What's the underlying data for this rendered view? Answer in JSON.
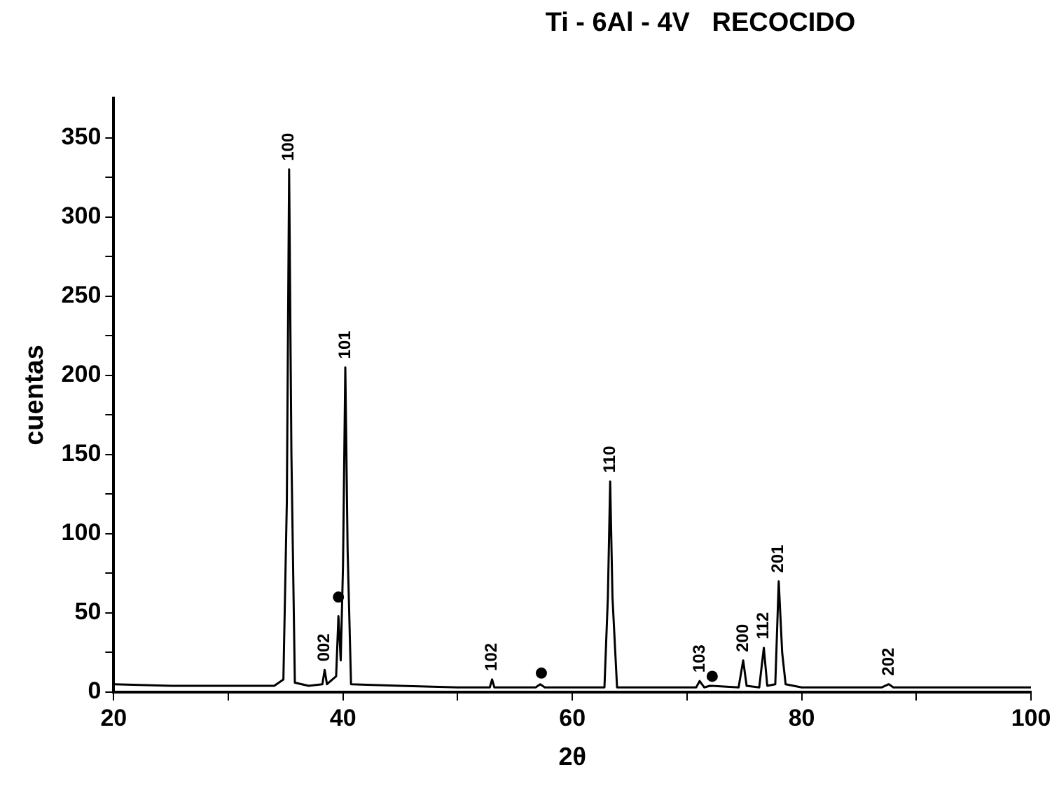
{
  "chart_data": {
    "type": "line",
    "title": "Ti - 6Al - 4V   RECOCIDO",
    "xlabel": "2θ",
    "ylabel": "cuentas",
    "xlim": [
      20,
      100
    ],
    "ylim": [
      0,
      375
    ],
    "xticks": [
      20,
      {
        "value": 30,
        "label": null
      },
      40,
      {
        "value": 50,
        "label": null
      },
      60,
      {
        "value": 70,
        "label": null
      },
      80,
      {
        "value": 90,
        "label": null
      },
      100
    ],
    "yticks": [
      0,
      {
        "value": 25,
        "label": null
      },
      50,
      {
        "value": 75,
        "label": null
      },
      100,
      {
        "value": 125,
        "label": null
      },
      150,
      {
        "value": 175,
        "label": null
      },
      200,
      {
        "value": 225,
        "label": null
      },
      250,
      {
        "value": 275,
        "label": null
      },
      300,
      {
        "value": 325,
        "label": null
      },
      350
    ],
    "grid": false,
    "legend": false,
    "series": [
      {
        "color": "#000000",
        "marker": "none",
        "x": [
          20,
          25,
          30,
          34,
          34.8,
          35.1,
          35.3,
          35.5,
          35.8,
          37,
          38.2,
          38.4,
          38.6,
          39.4,
          39.6,
          39.8,
          40.0,
          40.2,
          40.4,
          40.7,
          45,
          50,
          52.8,
          53.0,
          53.2,
          56.8,
          57.2,
          57.6,
          60,
          62.8,
          63.1,
          63.3,
          63.5,
          63.9,
          68,
          70.8,
          71.1,
          71.5,
          72,
          74.5,
          74.9,
          75.2,
          76.3,
          76.7,
          77,
          77.7,
          78.0,
          78.3,
          78.6,
          80,
          87,
          87.6,
          88,
          95,
          100
        ],
        "values": [
          5,
          4,
          4,
          4,
          8,
          120,
          330,
          150,
          6,
          4,
          5,
          14,
          5,
          10,
          48,
          20,
          80,
          205,
          90,
          5,
          4,
          3,
          3,
          8,
          3,
          3,
          5,
          3,
          3,
          3,
          60,
          133,
          60,
          3,
          3,
          3,
          7,
          3,
          4,
          3,
          20,
          4,
          3,
          28,
          4,
          5,
          70,
          25,
          5,
          3,
          3,
          5,
          3,
          3,
          3
        ]
      },
      {
        "type": "scatter",
        "color": "#000000",
        "marker": "circle",
        "x": [
          39.6,
          57.3,
          72.2
        ],
        "values": [
          60,
          12,
          10
        ]
      }
    ],
    "annotations": [
      {
        "text": "100",
        "x": 35.3,
        "y": 330
      },
      {
        "text": "002",
        "x": 38.4,
        "y": 14
      },
      {
        "text": "101",
        "x": 40.2,
        "y": 205
      },
      {
        "text": "102",
        "x": 53.0,
        "y": 8
      },
      {
        "text": "110",
        "x": 63.3,
        "y": 133
      },
      {
        "text": "103",
        "x": 71.1,
        "y": 7
      },
      {
        "text": "200",
        "x": 74.9,
        "y": 20
      },
      {
        "text": "112",
        "x": 76.7,
        "y": 28
      },
      {
        "text": "201",
        "x": 78.0,
        "y": 70
      },
      {
        "text": "202",
        "x": 87.6,
        "y": 5
      }
    ]
  }
}
